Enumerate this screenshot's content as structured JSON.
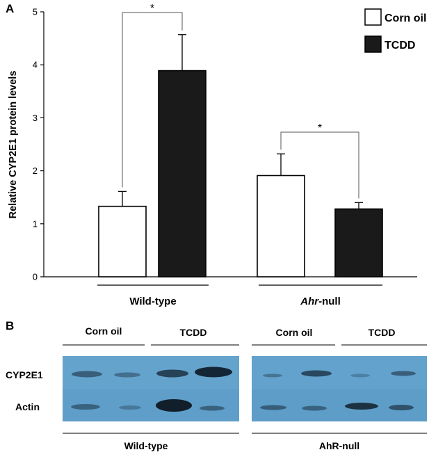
{
  "panel_a": {
    "label": "A"
  },
  "panel_b": {
    "label": "B"
  },
  "chart_data": {
    "type": "bar",
    "ylabel": "Relative CYP2E1 protein levels",
    "ylim": [
      0,
      5
    ],
    "yticks": [
      0,
      1,
      2,
      3,
      4,
      5
    ],
    "legend_placement": "top-right",
    "groups": [
      {
        "label": "Wild-type",
        "italic_part": ""
      },
      {
        "label": "-null",
        "italic_part": "Ahr"
      }
    ],
    "series": [
      {
        "name": "Corn oil",
        "fill": "#ffffff",
        "values": [
          1.33,
          1.91
        ],
        "errors": [
          0.28,
          0.41
        ]
      },
      {
        "name": "TCDD",
        "fill": "#1a1a1a",
        "values": [
          3.89,
          1.28
        ],
        "errors": [
          0.68,
          0.12
        ]
      }
    ],
    "significance": [
      {
        "group": 0,
        "mark": "*"
      },
      {
        "group": 1,
        "mark": "*"
      }
    ]
  },
  "blot": {
    "treatments": [
      "Corn oil",
      "TCDD",
      "Corn oil",
      "TCDD"
    ],
    "rows": [
      "CYP2E1",
      "Actin"
    ],
    "genotypes": [
      "Wild-type",
      "AhR-null"
    ],
    "membrane_color": "#5b9bc6",
    "band_color": "#1c3142"
  }
}
